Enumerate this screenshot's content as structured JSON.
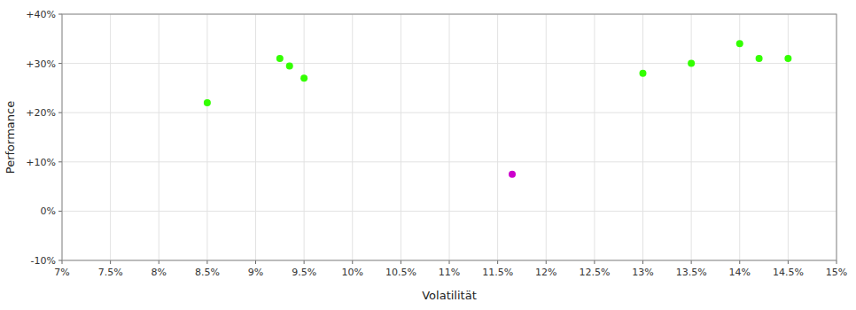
{
  "chart_data": {
    "type": "scatter",
    "xlabel": "Volatilität",
    "ylabel": "Performance",
    "series": [
      {
        "color": "#33ff00",
        "x": [
          8.5,
          9.25,
          9.35,
          9.5,
          13.0,
          13.5,
          14.0,
          14.2,
          14.5
        ],
        "values": [
          22.0,
          31.0,
          29.5,
          27.0,
          28.0,
          30.0,
          34.0,
          31.0,
          31.0
        ]
      },
      {
        "color": "#cc00cc",
        "x": [
          11.65
        ],
        "values": [
          7.5
        ]
      }
    ],
    "xlim": [
      7.0,
      15.0
    ],
    "ylim": [
      -10.0,
      40.0
    ],
    "xticks": [
      {
        "value": 7.0,
        "label": "7%"
      },
      {
        "value": 7.5,
        "label": "7.5%"
      },
      {
        "value": 8.0,
        "label": "8%"
      },
      {
        "value": 8.5,
        "label": "8.5%"
      },
      {
        "value": 9.0,
        "label": "9%"
      },
      {
        "value": 9.5,
        "label": "9.5%"
      },
      {
        "value": 10.0,
        "label": "10%"
      },
      {
        "value": 10.5,
        "label": "10.5%"
      },
      {
        "value": 11.0,
        "label": "11%"
      },
      {
        "value": 11.5,
        "label": "11.5%"
      },
      {
        "value": 12.0,
        "label": "12%"
      },
      {
        "value": 12.5,
        "label": "12.5%"
      },
      {
        "value": 13.0,
        "label": "13%"
      },
      {
        "value": 13.5,
        "label": "13.5%"
      },
      {
        "value": 14.0,
        "label": "14%"
      },
      {
        "value": 14.5,
        "label": "14.5%"
      },
      {
        "value": 15.0,
        "label": "15%"
      }
    ],
    "yticks": [
      {
        "value": -10,
        "label": "-10%"
      },
      {
        "value": 0,
        "label": "0%"
      },
      {
        "value": 10,
        "label": "+10%"
      },
      {
        "value": 20,
        "label": "+20%"
      },
      {
        "value": 30,
        "label": "+30%"
      },
      {
        "value": 40,
        "label": "+40%"
      }
    ],
    "grid": true
  }
}
